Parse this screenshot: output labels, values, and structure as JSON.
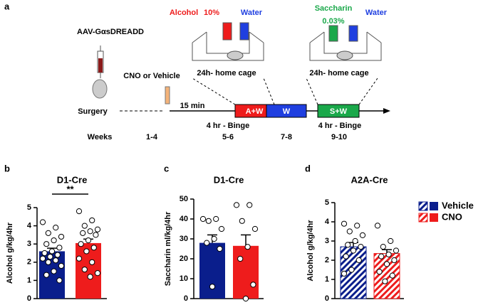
{
  "diagram": {
    "panel_label": "a",
    "vector": "AAV-GαsDREADD",
    "surgery": "Surgery",
    "treatment": "CNO or Vehicle",
    "delay": "15 min",
    "weeks_label": "Weeks",
    "weeks": [
      "1-4",
      "5-6",
      "7-8",
      "9-10"
    ],
    "sessions": [
      "A+W",
      "W",
      "S+W"
    ],
    "session_notes": [
      "4 hr - Binge",
      "4 hr - Binge"
    ],
    "cages": [
      {
        "label": "24h- home cage",
        "bottles": [
          "Alcohol",
          "10%",
          "Water"
        ]
      },
      {
        "label": "24h- home cage",
        "bottles": [
          "Saccharin",
          "0.03%",
          "Water"
        ]
      }
    ]
  },
  "chart_data": [
    {
      "type": "bar",
      "label": "b",
      "title": "D1-Cre",
      "y_label": "Alcohol g/kg/4hr",
      "annotation": "**",
      "ylim": [
        0,
        5
      ],
      "yticks": [
        0,
        1,
        2,
        3,
        4,
        5
      ],
      "hatch": false,
      "series": [
        {
          "name": "Vehicle",
          "color": "#0a1e8c",
          "values": [
            2.6
          ],
          "errors": [
            0.17
          ],
          "points": [
            4.2,
            3.9,
            3.6,
            3.4,
            3.2,
            3.0,
            2.8,
            2.6,
            2.5,
            2.4,
            2.3,
            2.2,
            2.1,
            2.0,
            1.8,
            1.5,
            1.3,
            1.0
          ]
        },
        {
          "name": "CNO",
          "color": "#ee1c1c",
          "values": [
            3.05
          ],
          "errors": [
            0.22
          ],
          "points": [
            4.8,
            4.3,
            4.0,
            3.8,
            3.7,
            3.6,
            3.5,
            3.2,
            3.0,
            2.8,
            2.6,
            2.2,
            2.0,
            1.6,
            1.4,
            1.2
          ]
        }
      ]
    },
    {
      "type": "bar",
      "label": "c",
      "title": "D1-Cre",
      "y_label": "Saccharin ml/kg/4hr",
      "ylim": [
        0,
        50
      ],
      "yticks": [
        0,
        10,
        20,
        30,
        40,
        50
      ],
      "hatch": false,
      "series": [
        {
          "name": "Vehicle",
          "color": "#0a1e8c",
          "values": [
            28
          ],
          "errors": [
            4
          ],
          "points": [
            40,
            40,
            39,
            35,
            30,
            28,
            25,
            6
          ]
        },
        {
          "name": "CNO",
          "color": "#ee1c1c",
          "values": [
            26.5
          ],
          "errors": [
            5.5
          ],
          "points": [
            47,
            47,
            39,
            35,
            26,
            20,
            7,
            0
          ]
        }
      ]
    },
    {
      "type": "bar",
      "label": "d",
      "title": "A2A-Cre",
      "y_label": "Alcohol g/kg/4hr",
      "ylim": [
        0,
        5
      ],
      "yticks": [
        0,
        1,
        2,
        3,
        4,
        5
      ],
      "hatch": true,
      "series": [
        {
          "name": "Vehicle",
          "color": "#0a1e8c",
          "values": [
            2.7
          ],
          "errors": [
            0.22
          ],
          "points": [
            3.9,
            3.8,
            3.5,
            3.3,
            3.0,
            2.8,
            2.7,
            2.5,
            2.2,
            2.0,
            1.5,
            1.3
          ]
        },
        {
          "name": "CNO",
          "color": "#ee1c1c",
          "values": [
            2.35
          ],
          "errors": [
            0.2
          ],
          "points": [
            3.8,
            3.0,
            2.7,
            2.5,
            2.3,
            2.2,
            2.0,
            1.8,
            1.4,
            1.2,
            0.9
          ]
        }
      ]
    }
  ]
}
